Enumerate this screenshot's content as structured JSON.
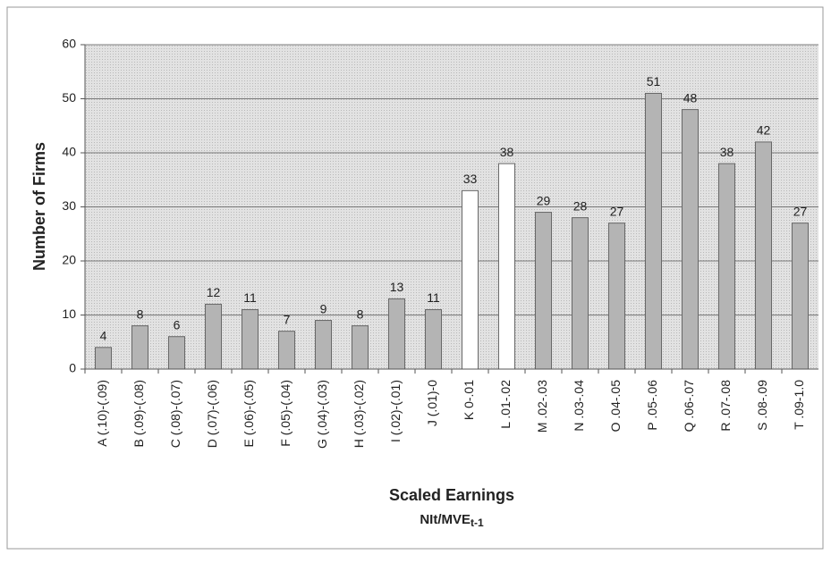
{
  "chart_data": {
    "type": "bar",
    "y_label": "Number of Firms",
    "x_label": "Scaled Earnings",
    "x_label_2": {
      "main": "NIt/MVE",
      "subscript": "t-1"
    },
    "categories": [
      "A (.10)-(.09)",
      "B (.09)-(.08)",
      "C (.08)-(.07)",
      "D (.07)-(.06)",
      "E (.06)-(.05)",
      "F (.05)-(.04)",
      "G (.04)-(.03)",
      "H (.03)-(.02)",
      "I (.02)-(.01)",
      "J (.01)-0",
      "K 0-.01",
      "L .01-.02",
      "M .02-.03",
      "N .03-.04",
      "O .04-.05",
      "P .05-.06",
      "Q .06-.07",
      "R .07-.08",
      "S .08-.09",
      "T .09-1.0"
    ],
    "values": [
      4,
      8,
      6,
      12,
      11,
      7,
      9,
      8,
      13,
      11,
      33,
      38,
      29,
      28,
      27,
      51,
      48,
      38,
      42,
      27
    ],
    "colors": [
      "#b4b4b4",
      "#b4b4b4",
      "#b4b4b4",
      "#b4b4b4",
      "#b4b4b4",
      "#b4b4b4",
      "#b4b4b4",
      "#b4b4b4",
      "#b4b4b4",
      "#b4b4b4",
      "#ffffff",
      "#ffffff",
      "#b4b4b4",
      "#b4b4b4",
      "#b4b4b4",
      "#b4b4b4",
      "#b4b4b4",
      "#b4b4b4",
      "#b4b4b4",
      "#b4b4b4"
    ],
    "ylim": [
      0,
      60
    ],
    "yticks": [
      0,
      10,
      20,
      30,
      40,
      50,
      60
    ],
    "grid": true
  }
}
